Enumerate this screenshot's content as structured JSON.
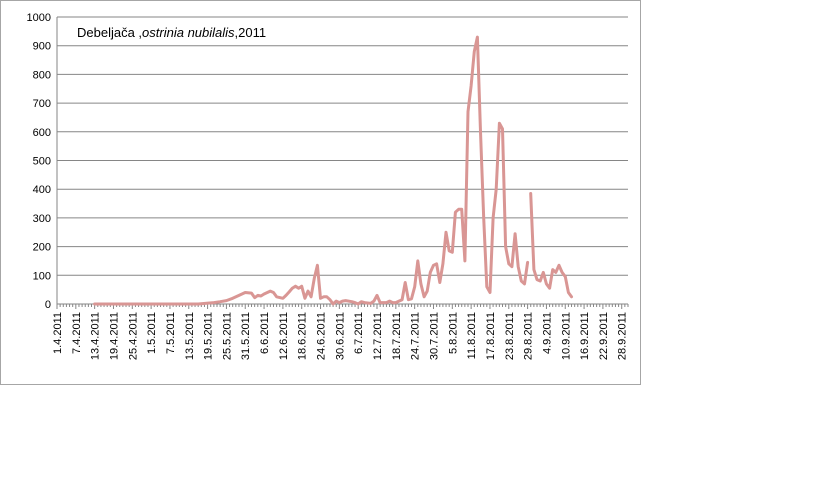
{
  "chart_data": {
    "type": "line",
    "title": "Debeljača ,",
    "title_italic": "ostrinia nubilalis",
    "title_suffix": ",2011",
    "xlabel": "",
    "ylabel": "",
    "ylim": [
      0,
      1000
    ],
    "yticks": [
      0,
      100,
      200,
      300,
      400,
      500,
      600,
      700,
      800,
      900,
      1000
    ],
    "grid": true,
    "legend": "none",
    "line_color": "#d99694",
    "x_range_days": [
      0,
      182
    ],
    "xtick_labels": [
      "1.4.2011",
      "7.4.2011",
      "13.4.2011",
      "19.4.2011",
      "25.4.2011",
      "1.5.2011",
      "7.5.2011",
      "13.5.2011",
      "19.5.2011",
      "25.5.2011",
      "31.5.2011",
      "6.6.2011",
      "12.6.2011",
      "18.6.2011",
      "24.6.2011",
      "30.6.2011",
      "6.7.2011",
      "12.7.2011",
      "18.7.2011",
      "24.7.2011",
      "30.7.2011",
      "5.8.2011",
      "11.8.2011",
      "17.8.2011",
      "23.8.2011",
      "29.8.2011",
      "4.9.2011",
      "10.9.2011",
      "16.9.2011",
      "22.9.2011",
      "28.9.2011"
    ],
    "series": [
      {
        "points": [
          [
            12,
            0
          ],
          [
            30,
            0
          ],
          [
            45,
            0
          ],
          [
            50,
            5
          ],
          [
            52,
            8
          ],
          [
            54,
            12
          ],
          [
            56,
            20
          ],
          [
            58,
            30
          ],
          [
            60,
            40
          ],
          [
            62,
            38
          ],
          [
            63,
            22
          ],
          [
            64,
            30
          ],
          [
            65,
            28
          ],
          [
            66,
            35
          ],
          [
            68,
            45
          ],
          [
            69,
            40
          ],
          [
            70,
            25
          ],
          [
            72,
            20
          ],
          [
            73,
            30
          ],
          [
            74,
            42
          ],
          [
            75,
            55
          ],
          [
            76,
            62
          ],
          [
            77,
            55
          ],
          [
            78,
            62
          ],
          [
            79,
            20
          ],
          [
            80,
            45
          ],
          [
            81,
            25
          ],
          [
            82,
            90
          ],
          [
            83,
            135
          ],
          [
            84,
            20
          ],
          [
            85,
            25
          ],
          [
            86,
            25
          ],
          [
            87,
            15
          ],
          [
            88,
            0
          ],
          [
            89,
            10
          ],
          [
            90,
            5
          ],
          [
            91,
            10
          ],
          [
            92,
            12
          ],
          [
            94,
            8
          ],
          [
            95,
            5
          ],
          [
            96,
            0
          ],
          [
            97,
            8
          ],
          [
            98,
            5
          ],
          [
            100,
            2
          ],
          [
            101,
            10
          ],
          [
            102,
            30
          ],
          [
            103,
            5
          ],
          [
            104,
            5
          ],
          [
            105,
            5
          ],
          [
            106,
            10
          ],
          [
            107,
            5
          ],
          [
            108,
            5
          ],
          [
            109,
            10
          ],
          [
            110,
            15
          ],
          [
            111,
            75
          ],
          [
            112,
            15
          ],
          [
            113,
            18
          ],
          [
            114,
            60
          ],
          [
            115,
            150
          ],
          [
            116,
            70
          ],
          [
            117,
            25
          ],
          [
            118,
            45
          ],
          [
            119,
            110
          ],
          [
            120,
            135
          ],
          [
            121,
            140
          ],
          [
            122,
            75
          ],
          [
            123,
            140
          ],
          [
            124,
            250
          ],
          [
            125,
            185
          ],
          [
            126,
            180
          ],
          [
            127,
            320
          ],
          [
            128,
            330
          ],
          [
            129,
            330
          ],
          [
            130,
            150
          ],
          [
            131,
            670
          ],
          [
            132,
            760
          ],
          [
            133,
            880
          ],
          [
            134,
            930
          ],
          [
            135,
            600
          ],
          [
            136,
            300
          ],
          [
            137,
            60
          ],
          [
            138,
            40
          ],
          [
            139,
            300
          ],
          [
            140,
            400
          ],
          [
            141,
            630
          ],
          [
            142,
            610
          ],
          [
            143,
            200
          ],
          [
            144,
            140
          ],
          [
            145,
            130
          ],
          [
            146,
            245
          ],
          [
            147,
            130
          ],
          [
            148,
            80
          ],
          [
            149,
            70
          ],
          [
            150,
            145
          ]
        ]
      },
      {
        "points": [
          [
            151,
            385
          ],
          [
            152,
            120
          ],
          [
            153,
            85
          ],
          [
            154,
            80
          ],
          [
            155,
            110
          ],
          [
            156,
            70
          ],
          [
            157,
            55
          ],
          [
            158,
            120
          ],
          [
            159,
            110
          ],
          [
            160,
            135
          ],
          [
            161,
            110
          ],
          [
            162,
            95
          ],
          [
            163,
            40
          ],
          [
            164,
            25
          ]
        ]
      }
    ]
  }
}
